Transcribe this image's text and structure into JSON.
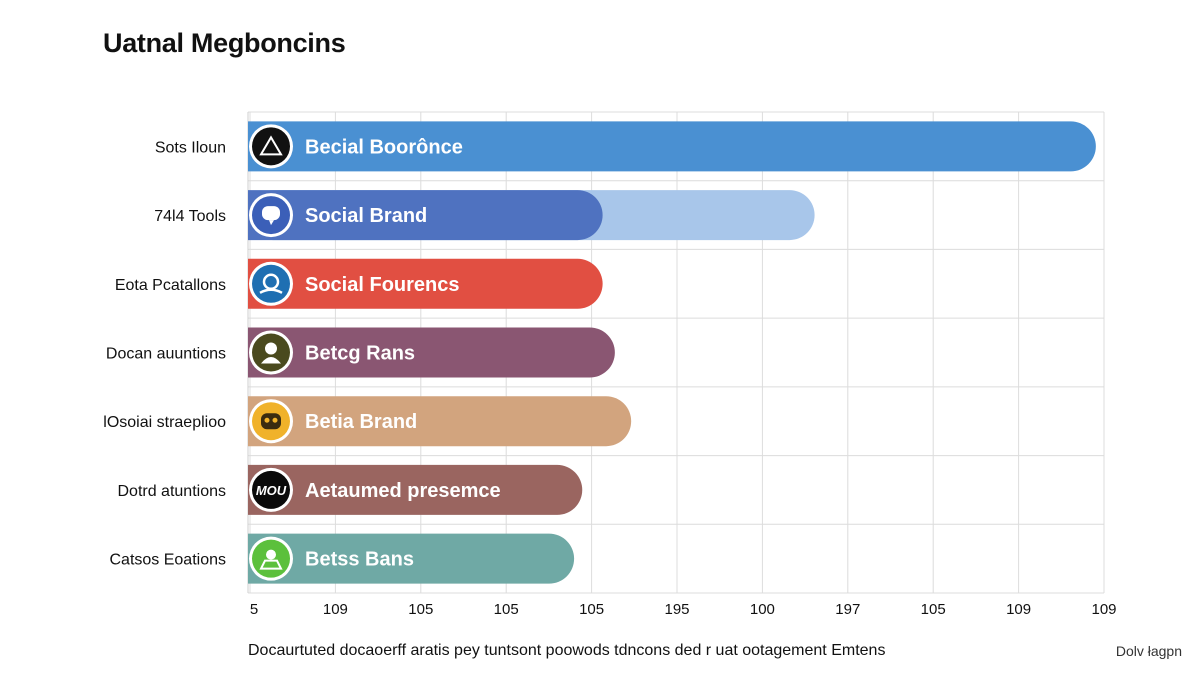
{
  "chart_data": {
    "type": "bar",
    "orientation": "horizontal",
    "title": "Uatnal Megboncins",
    "categories": [
      "Sots Iloun",
      "74l4 Tools",
      "Eota Pcatallons",
      "Docan auuntions",
      "lOsoiai straeplioo",
      "Dotrd atuntions",
      "Catsos Eoations"
    ],
    "bar_labels": [
      "Becial Boorônce",
      "Social Brand",
      "Social Fourencs",
      "Betcg Rans",
      "Betia Brand",
      "Aetaumed presemce",
      "Betss Bans"
    ],
    "values": [
      10.4,
      4.35,
      4.35,
      4.5,
      4.7,
      4.1,
      4.0
    ],
    "secondary_values": [
      null,
      6.95,
      null,
      null,
      null,
      null,
      null
    ],
    "x_tick_labels": [
      "5",
      "109",
      "105",
      "105",
      "105",
      "195",
      "100",
      "197",
      "105",
      "109",
      "109"
    ],
    "xlim": [
      0,
      10.5
    ],
    "grid": true,
    "colors": [
      "#4a90d2",
      "#4f72c0",
      "#e14f42",
      "#8a5672",
      "#d2a47e",
      "#9a6560",
      "#6fa9a5"
    ],
    "secondary_color": "#a8c6ea",
    "icons": [
      "triangle-warning-icon",
      "chat-bubble-icon",
      "person-target-icon",
      "person-icon",
      "robot-face-icon",
      "text-logo-icon",
      "green-person-icon"
    ],
    "icon_text": [
      "",
      "",
      "",
      "",
      "",
      "MOU",
      ""
    ],
    "icon_bg": [
      "#111111",
      "#3b5fb8",
      "#1f6fb2",
      "#4a4a1e",
      "#f0b22a",
      "#0a0a0a",
      "#5cc03c"
    ],
    "xlabel": "",
    "ylabel": ""
  },
  "footnote": "Docaurtuted docaoerff aratis pey tuntsont poowods tdncons ded r uat ootagement Emtens",
  "credit": "Dolv łagpn"
}
